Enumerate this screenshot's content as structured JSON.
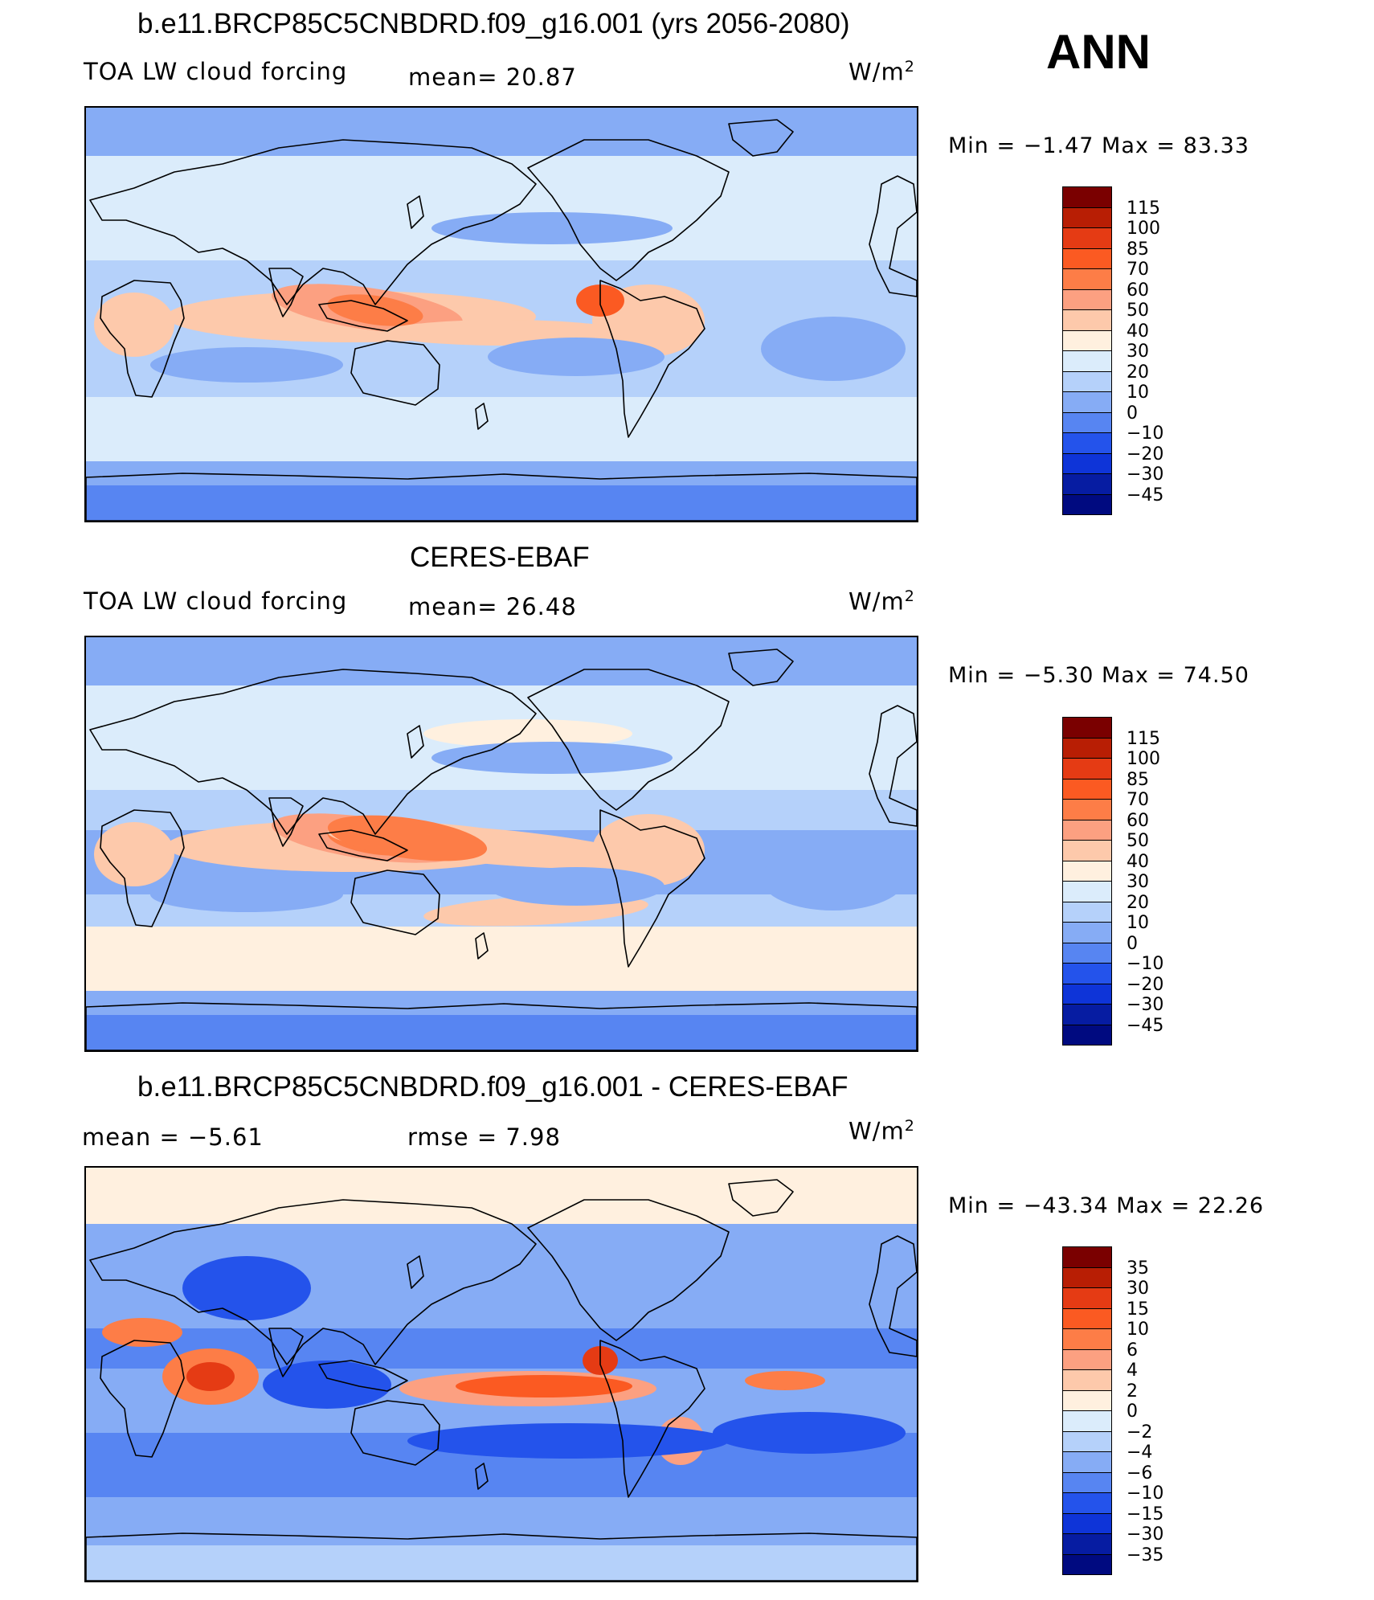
{
  "season": "ANN",
  "units_base": "W/m",
  "units_exp": "2",
  "panels": [
    {
      "title": "b.e11.BRCP85C5CNBDRD.f09_g16.001 (yrs 2056-2080)",
      "left": "TOA LW cloud forcing",
      "stat1": "mean=   20.87",
      "stat2": "",
      "minmax": "Min =   −1.47  Max =    83.33",
      "scale": "full",
      "field_mean": 20.87,
      "field_min": -1.47,
      "field_max": 83.33
    },
    {
      "title": "CERES-EBAF",
      "left": "TOA LW cloud forcing",
      "stat1": "mean=   26.48",
      "stat2": "",
      "minmax": "Min =   −5.30  Max =    74.50",
      "scale": "full",
      "field_mean": 26.48,
      "field_min": -5.3,
      "field_max": 74.5
    },
    {
      "title": "b.e11.BRCP85C5CNBDRD.f09_g16.001 - CERES-EBAF",
      "left": "mean =    −5.61",
      "stat1": "rmse =     7.98",
      "stat2": "",
      "minmax": "Min = −43.34  Max =    22.26",
      "scale": "diff",
      "field_mean": -5.61,
      "field_rmse": 7.98,
      "field_min": -43.34,
      "field_max": 22.26
    }
  ],
  "colorbars": {
    "full": {
      "labels": [
        "115",
        "100",
        "85",
        "70",
        "60",
        "50",
        "40",
        "30",
        "20",
        "10",
        "0",
        "−10",
        "−20",
        "−30",
        "−45"
      ],
      "colors": [
        "#7a0000",
        "#b81e04",
        "#e53b14",
        "#fb5a22",
        "#fd7d47",
        "#fca081",
        "#fdc9ab",
        "#fff0df",
        "#dbecfb",
        "#b5d1fa",
        "#86acf5",
        "#5785f2",
        "#2453eb",
        "#0e34d8",
        "#061ca2",
        "#000a80"
      ]
    },
    "diff": {
      "labels": [
        "35",
        "30",
        "15",
        "10",
        "6",
        "4",
        "2",
        "0",
        "−2",
        "−4",
        "−6",
        "−10",
        "−15",
        "−30",
        "−35"
      ],
      "colors": [
        "#7a0000",
        "#b81e04",
        "#e53b14",
        "#fb5a22",
        "#fd7d47",
        "#fca081",
        "#fdc9ab",
        "#fff0df",
        "#dbecfb",
        "#b5d1fa",
        "#86acf5",
        "#5785f2",
        "#2453eb",
        "#0e34d8",
        "#061ca2",
        "#000a80"
      ]
    }
  }
}
